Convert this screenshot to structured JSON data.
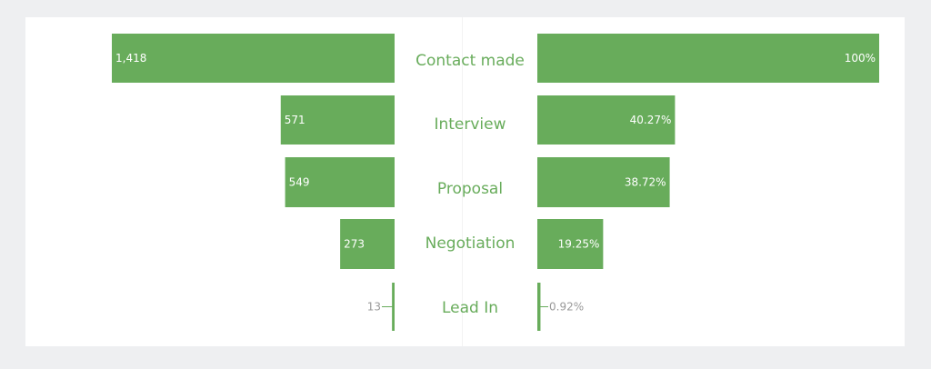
{
  "chart_data": {
    "type": "bar",
    "variant": "mirrored-funnel",
    "categories": [
      "Contact made",
      "Interview",
      "Proposal",
      "Negotiation",
      "Lead In"
    ],
    "series": [
      {
        "values": [
          1418,
          571,
          549,
          273,
          13
        ]
      },
      {
        "values": [
          100,
          40.27,
          38.72,
          19.25,
          0.92
        ]
      }
    ],
    "count_labels": [
      "1,418",
      "571",
      "549",
      "273",
      "13"
    ],
    "percent_labels": [
      "100%",
      "40.27%",
      "38.72%",
      "19.25%",
      "0.92%"
    ],
    "title": "",
    "xlabel": "",
    "ylabel": "",
    "grid": false,
    "legend": "none"
  },
  "colors": {
    "bar": "#68ac5b",
    "category_text": "#68ac5b",
    "inside_label": "#ffffff",
    "outside_label": "#9a9a9a",
    "background": "#eeeff1",
    "panel": "#ffffff"
  }
}
